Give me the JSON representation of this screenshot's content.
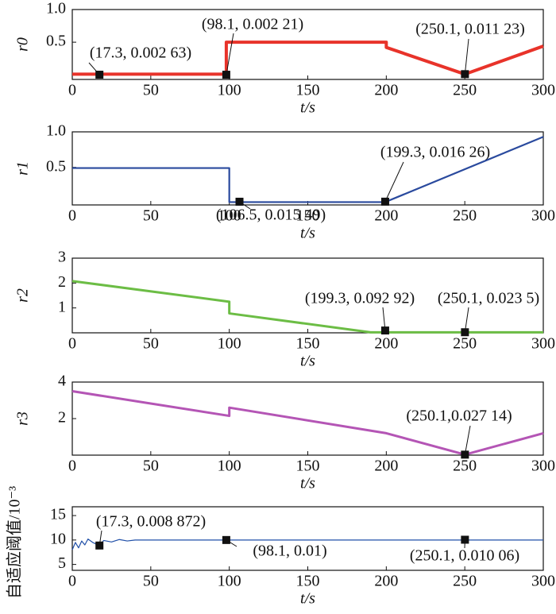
{
  "chart_data": [
    {
      "type": "line",
      "ylabel": "r0",
      "xlabel": "t/s",
      "xlim": [
        0,
        300
      ],
      "xticks": [
        0,
        50,
        100,
        150,
        200,
        250,
        300
      ],
      "ylim": [
        -0.07,
        1.0
      ],
      "yticks": [
        0.5,
        {
          "value": 1,
          "label": "1.0"
        }
      ],
      "series": [
        {
          "color": "#e8332a",
          "x": [
            0,
            98.1,
            98.1,
            200,
            200,
            250.1,
            300
          ],
          "values": [
            0.01,
            0.01,
            0.5,
            0.5,
            0.42,
            0.01,
            0.44
          ]
        }
      ],
      "annotations": [
        {
          "text": "(17.3, 0.002 63)",
          "x": 17.3,
          "y": 0.00263
        },
        {
          "text": "(98.1, 0.002 21)",
          "x": 98.1,
          "y": 0.00221
        },
        {
          "text": "(250.1, 0.011 23)",
          "x": 250.1,
          "y": 0.01123
        }
      ]
    },
    {
      "type": "line",
      "ylabel": "r1",
      "xlabel": "t/s",
      "xlim": [
        0,
        300
      ],
      "xticks": [
        0,
        50,
        100,
        150,
        200,
        250,
        300
      ],
      "ylim": [
        -0.03,
        1.0
      ],
      "yticks": [
        0.5,
        {
          "value": 1,
          "label": "1.0"
        }
      ],
      "series": [
        {
          "color": "#2a4a9e",
          "x": [
            0,
            100,
            100,
            199.3,
            300
          ],
          "values": [
            0.49,
            0.49,
            0.01,
            0.01,
            0.93
          ]
        }
      ],
      "annotations": [
        {
          "text": "(106.5, 0.015 49)",
          "x": 106.5,
          "y": 0.01549
        },
        {
          "text": "(199.3, 0.016 26)",
          "x": 199.3,
          "y": 0.01626
        }
      ]
    },
    {
      "type": "line",
      "ylabel": "r2",
      "xlabel": "t/s",
      "xlim": [
        0,
        300
      ],
      "xticks": [
        0,
        50,
        100,
        150,
        200,
        250,
        300
      ],
      "ylim": [
        0,
        3
      ],
      "yticks": [
        1,
        2,
        3
      ],
      "series": [
        {
          "color": "#6cbd45",
          "x": [
            0,
            100,
            100,
            190,
            300
          ],
          "values": [
            2.08,
            1.25,
            0.78,
            0.02,
            0.02
          ]
        }
      ],
      "annotations": [
        {
          "text": "(199.3, 0.092 92)",
          "x": 199.3,
          "y": 0.09292
        },
        {
          "text": "(250.1, 0.023 5)",
          "x": 250.1,
          "y": 0.0235
        }
      ]
    },
    {
      "type": "line",
      "ylabel": "r3",
      "xlabel": "t/s",
      "xlim": [
        0,
        300
      ],
      "xticks": [
        0,
        50,
        100,
        150,
        200,
        250,
        300
      ],
      "ylim": [
        0,
        4
      ],
      "yticks": [
        2,
        4
      ],
      "series": [
        {
          "color": "#b455b5",
          "x": [
            0,
            100,
            100,
            200,
            250.1,
            300
          ],
          "values": [
            3.5,
            2.15,
            2.6,
            1.2,
            0.03,
            1.2
          ]
        }
      ],
      "annotations": [
        {
          "text": "(250.1,0.027 14)",
          "x": 250.1,
          "y": 0.02714
        }
      ]
    },
    {
      "type": "line",
      "ylabel": "自适应阈值/10⁻³",
      "xlabel": "t/s",
      "xlim": [
        0,
        300
      ],
      "xticks": [
        0,
        50,
        100,
        150,
        200,
        250,
        300
      ],
      "ylim": [
        3.8,
        16.8
      ],
      "yticks": [
        5,
        10,
        15
      ],
      "series": [
        {
          "color": "#1f4fa8",
          "x": [
            0,
            2,
            4,
            6,
            8,
            10,
            13,
            17.3,
            20,
            25,
            30,
            35,
            40,
            50,
            100,
            300
          ],
          "values": [
            8,
            9.5,
            8.4,
            9.8,
            9,
            10.2,
            9.5,
            8.872,
            9.9,
            9.6,
            10.1,
            9.8,
            10,
            10,
            10,
            10
          ]
        }
      ],
      "annotations": [
        {
          "text": "(17.3, 0.008 872)",
          "x": 17.3,
          "y": 8.872
        },
        {
          "text": "(98.1, 0.01)",
          "x": 98.1,
          "y": 10
        },
        {
          "text": "(250.1, 0.010 06)",
          "x": 250.1,
          "y": 10.06
        }
      ]
    }
  ]
}
